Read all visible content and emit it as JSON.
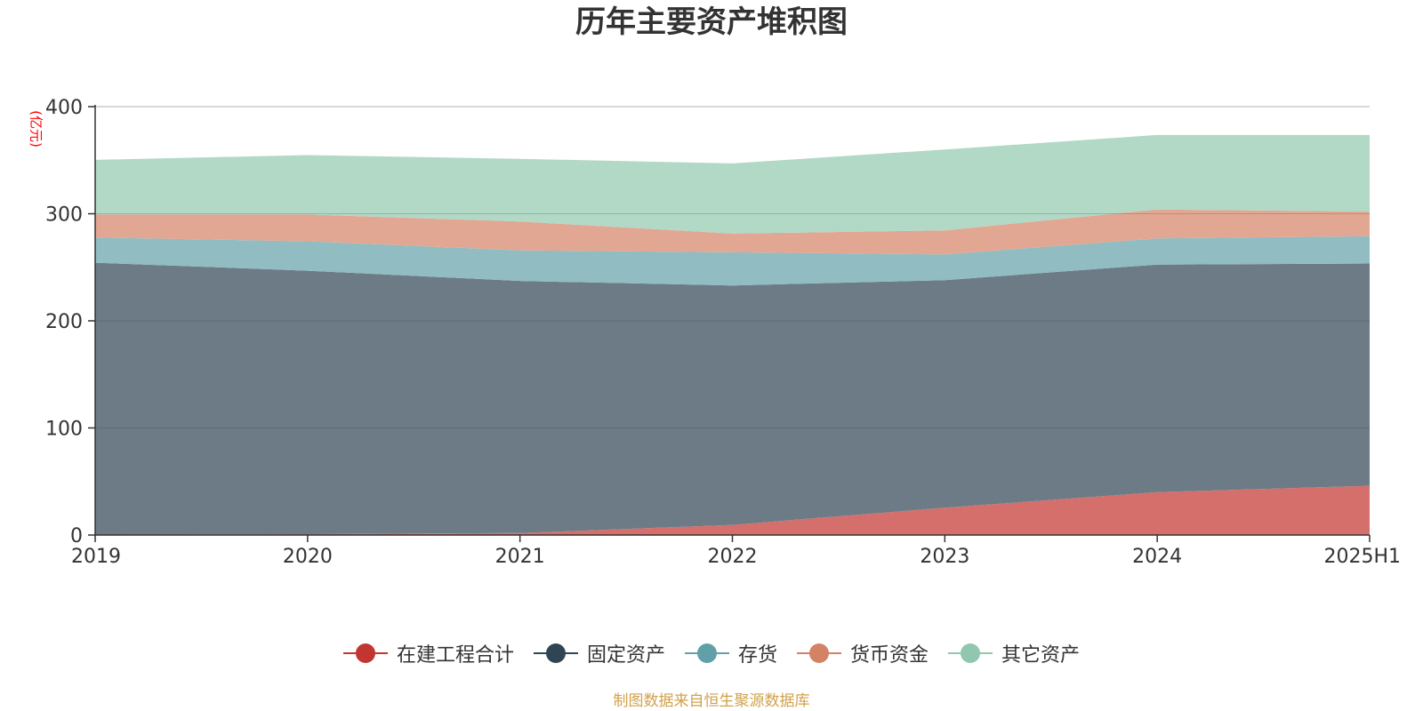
{
  "chart_data": {
    "type": "area",
    "title": "历年主要资产堆积图",
    "unit": "(亿元)",
    "categories": [
      "2019",
      "2020",
      "2021",
      "2022",
      "2023",
      "2024",
      "2025H1"
    ],
    "yticks": [
      "0",
      "100",
      "200",
      "300",
      "400"
    ],
    "ylim": [
      0,
      400
    ],
    "stacked": true,
    "grid": true,
    "legend_position": "bottom",
    "series": [
      {
        "name": "在建工程合计",
        "color": "#c23531",
        "fill": "#d46f6c",
        "values": [
          0.3,
          0.8,
          1.8,
          9.5,
          25.5,
          40.0,
          46.0
        ]
      },
      {
        "name": "固定资产",
        "color": "#2f4554",
        "fill": "#6d7b86",
        "values": [
          254.0,
          246.0,
          235.5,
          223.5,
          212.5,
          212.5,
          207.5
        ]
      },
      {
        "name": "存货",
        "color": "#61a0a8",
        "fill": "#90bcc2",
        "values": [
          23.5,
          27.5,
          28.5,
          31.0,
          24.0,
          24.5,
          25.5
        ]
      },
      {
        "name": "货币资金",
        "color": "#d48265",
        "fill": "#e1a792",
        "values": [
          21.5,
          25.0,
          27.0,
          17.5,
          22.5,
          27.0,
          23.0
        ]
      },
      {
        "name": "其它资产",
        "color": "#91c7ae",
        "fill": "#b2d8c6",
        "values": [
          51.0,
          55.5,
          58.5,
          65.5,
          75.5,
          69.5,
          71.5
        ]
      }
    ]
  },
  "source": "制图数据来自恒生聚源数据库"
}
